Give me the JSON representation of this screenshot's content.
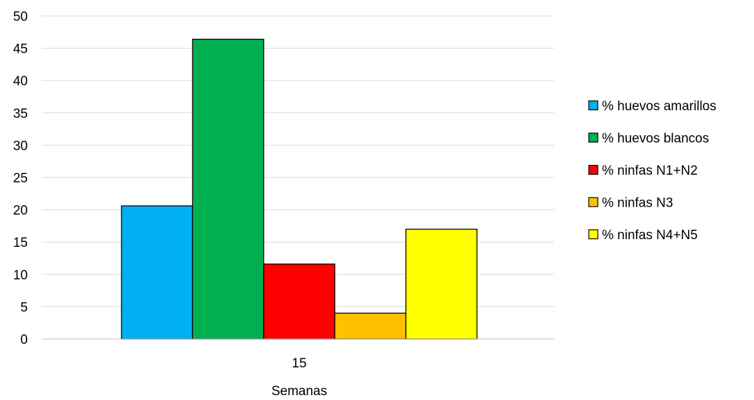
{
  "chart_data": {
    "type": "bar",
    "categories": [
      "15"
    ],
    "series": [
      {
        "name": "% huevos amarillos",
        "values": [
          20.6
        ],
        "color": "#00B0F0"
      },
      {
        "name": "% huevos blancos",
        "values": [
          46.4
        ],
        "color": "#00B050"
      },
      {
        "name": "% ninfas N1+N2",
        "values": [
          11.6
        ],
        "color": "#FF0000"
      },
      {
        "name": "% ninfas N3",
        "values": [
          4.0
        ],
        "color": "#FFC000"
      },
      {
        "name": "% ninfas N4+N5",
        "values": [
          17.0
        ],
        "color": "#FFFF00"
      }
    ],
    "xlabel": "Semanas",
    "ylabel": "",
    "ylim": [
      0,
      50
    ],
    "yticks": [
      "0",
      "5",
      "10",
      "15",
      "20",
      "25",
      "30",
      "35",
      "40",
      "45",
      "50"
    ],
    "grid": true,
    "legend": "right"
  }
}
